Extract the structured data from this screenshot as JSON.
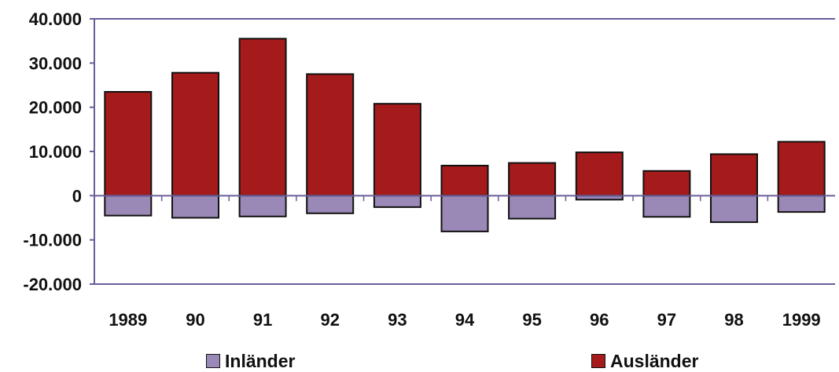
{
  "chart_data": {
    "type": "bar",
    "stacked": true,
    "categories": [
      "1989",
      "90",
      "91",
      "92",
      "93",
      "94",
      "95",
      "96",
      "97",
      "98",
      "1999"
    ],
    "series": [
      {
        "name": "Inländer",
        "color": "#9a88b6",
        "values": [
          -4500,
          -5000,
          -4700,
          -4000,
          -2600,
          -8100,
          -5200,
          -900,
          -4800,
          -6000,
          -3700
        ]
      },
      {
        "name": "Ausländer",
        "color": "#a51a1a",
        "values": [
          23500,
          27800,
          35500,
          27500,
          20800,
          6800,
          7400,
          9800,
          5600,
          9400,
          12200
        ]
      }
    ],
    "ylim": [
      -20000,
      40000
    ],
    "yticks": [
      "40.000",
      "30.000",
      "20.000",
      "10.000",
      "0",
      "-10.000",
      "-20.000"
    ],
    "ytick_values": [
      40000,
      30000,
      20000,
      10000,
      0,
      -10000,
      -20000
    ],
    "legend_position": "bottom",
    "grid": false
  }
}
